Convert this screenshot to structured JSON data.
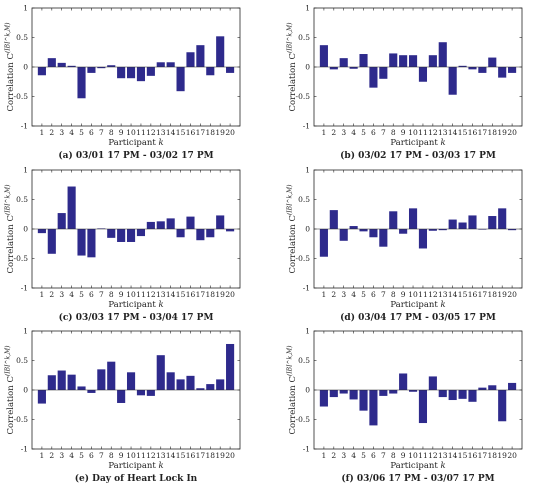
{
  "chart_data": [
    {
      "type": "bar",
      "ylabel": "Correlation C^(IBI^k,M)",
      "xlabel": "Participant k",
      "caption": "(a) 03/01 17 PM - 03/02 17 PM",
      "categories": [
        "1",
        "2",
        "3",
        "4",
        "5",
        "6",
        "7",
        "8",
        "9",
        "10",
        "11",
        "12",
        "13",
        "14",
        "15",
        "16",
        "17",
        "18",
        "19",
        "20"
      ],
      "values": [
        -0.14,
        0.15,
        0.07,
        0.02,
        -0.53,
        -0.1,
        -0.02,
        0.03,
        -0.19,
        -0.19,
        -0.24,
        -0.15,
        0.08,
        0.08,
        -0.41,
        0.25,
        0.37,
        -0.14,
        0.52,
        -0.1
      ],
      "ylim": [
        -1,
        1
      ],
      "yticks": [
        -1,
        -0.5,
        0,
        0.5,
        1
      ],
      "bar_color": "#2e2a8c"
    },
    {
      "type": "bar",
      "ylabel": "Correlation C^(IBI^k,M)",
      "xlabel": "Participant k",
      "caption": "(b) 03/02 17 PM - 03/03 17 PM",
      "categories": [
        "1",
        "2",
        "3",
        "4",
        "5",
        "6",
        "7",
        "8",
        "9",
        "10",
        "11",
        "12",
        "13",
        "14",
        "15",
        "16",
        "17",
        "18",
        "19",
        "20"
      ],
      "values": [
        0.37,
        -0.04,
        0.15,
        -0.03,
        0.22,
        -0.35,
        -0.2,
        0.23,
        0.2,
        0.2,
        -0.25,
        0.2,
        0.42,
        -0.47,
        0.02,
        -0.04,
        -0.1,
        0.16,
        -0.18,
        -0.1
      ],
      "ylim": [
        -1,
        1
      ],
      "yticks": [
        -1,
        -0.5,
        0,
        0.5,
        1
      ],
      "bar_color": "#2e2a8c"
    },
    {
      "type": "bar",
      "ylabel": "Correlation C^(IBI^k,M)",
      "xlabel": "Participant k",
      "caption": "(c) 03/03 17 PM - 03/04 17 PM",
      "categories": [
        "1",
        "2",
        "3",
        "4",
        "5",
        "6",
        "7",
        "8",
        "9",
        "10",
        "11",
        "12",
        "13",
        "14",
        "15",
        "16",
        "17",
        "18",
        "19",
        "20"
      ],
      "values": [
        -0.07,
        -0.42,
        0.27,
        0.72,
        -0.45,
        -0.48,
        0.01,
        -0.15,
        -0.22,
        -0.22,
        -0.12,
        0.12,
        0.13,
        0.18,
        -0.14,
        0.21,
        -0.19,
        -0.14,
        0.23,
        -0.04
      ],
      "ylim": [
        -1,
        1
      ],
      "yticks": [
        -1,
        -0.5,
        0,
        0.5,
        1
      ],
      "bar_color": "#2e2a8c"
    },
    {
      "type": "bar",
      "ylabel": "Correlation C^(IBI^k,M)",
      "xlabel": "Participant k",
      "caption": "(d) 03/04 17 PM - 03/05 17 PM",
      "categories": [
        "1",
        "2",
        "3",
        "4",
        "5",
        "6",
        "7",
        "8",
        "9",
        "10",
        "11",
        "12",
        "13",
        "14",
        "15",
        "16",
        "17",
        "18",
        "19",
        "20"
      ],
      "values": [
        -0.47,
        0.32,
        -0.2,
        0.05,
        -0.04,
        -0.14,
        -0.3,
        0.3,
        -0.08,
        0.35,
        -0.33,
        -0.03,
        -0.02,
        0.16,
        0.11,
        0.23,
        -0.01,
        0.22,
        0.35,
        -0.02
      ],
      "ylim": [
        -1,
        1
      ],
      "yticks": [
        -1,
        -0.5,
        0,
        0.5,
        1
      ],
      "bar_color": "#2e2a8c"
    },
    {
      "type": "bar",
      "ylabel": "Correlation C^(IBI^k,M)",
      "xlabel": "Participant k",
      "caption": "(e) Day of Heart Lock In",
      "categories": [
        "1",
        "2",
        "3",
        "4",
        "5",
        "6",
        "7",
        "8",
        "9",
        "10",
        "11",
        "12",
        "13",
        "14",
        "15",
        "16",
        "17",
        "18",
        "19",
        "20"
      ],
      "values": [
        -0.23,
        0.25,
        0.33,
        0.26,
        0.06,
        -0.05,
        0.35,
        0.48,
        -0.22,
        0.3,
        -0.09,
        -0.1,
        0.59,
        0.3,
        0.18,
        0.24,
        0.03,
        0.1,
        0.18,
        0.78
      ],
      "ylim": [
        -1,
        1
      ],
      "yticks": [
        -1,
        -0.5,
        0,
        0.5,
        1
      ],
      "bar_color": "#2e2a8c"
    },
    {
      "type": "bar",
      "ylabel": "Correlation C^(IBI^k,M)",
      "xlabel": "Participant k",
      "caption": "(f) 03/06 17 PM - 03/07 17 PM",
      "categories": [
        "1",
        "2",
        "3",
        "4",
        "5",
        "6",
        "7",
        "8",
        "9",
        "10",
        "11",
        "12",
        "13",
        "14",
        "15",
        "16",
        "17",
        "18",
        "19",
        "20"
      ],
      "values": [
        -0.28,
        -0.12,
        -0.06,
        -0.16,
        -0.35,
        -0.6,
        -0.1,
        -0.06,
        0.28,
        -0.03,
        -0.56,
        0.23,
        -0.12,
        -0.17,
        -0.15,
        -0.2,
        0.04,
        0.08,
        -0.53,
        0.12
      ],
      "ylim": [
        -1,
        1
      ],
      "yticks": [
        -1,
        -0.5,
        0,
        0.5,
        1
      ],
      "bar_color": "#2e2a8c"
    }
  ]
}
